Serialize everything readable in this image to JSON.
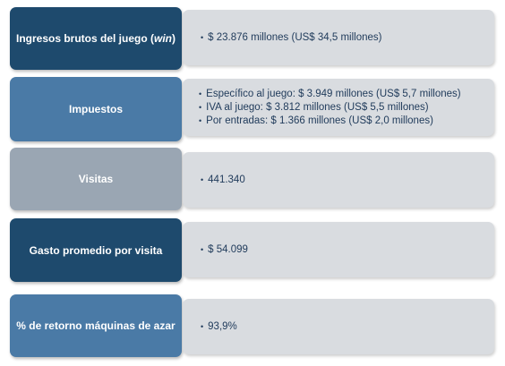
{
  "colors": {
    "navy": "#1e4a6d",
    "steel": "#4a7aa6",
    "gray": "#9aa6b3",
    "panel": "#d9dce0",
    "panel_text": "#1f3a5a"
  },
  "rows": [
    {
      "label_main": "Ingresos brutos del juego (",
      "label_em": "win",
      "label_end": ")",
      "bullets": [
        "$ 23.876 millones (US$ 34,5 millones)"
      ]
    },
    {
      "label": "Impuestos",
      "bullets": [
        "Específico al juego: $ 3.949 millones (US$ 5,7 millones)",
        "IVA al juego: $ 3.812 millones (US$ 5,5 millones)",
        "Por entradas: $ 1.366 millones (US$ 2,0 millones)"
      ]
    },
    {
      "label": "Visitas",
      "bullets": [
        "441.340"
      ]
    },
    {
      "label": "Gasto promedio por visita",
      "bullets": [
        "$ 54.099"
      ]
    },
    {
      "label": "% de retorno máquinas de azar",
      "bullets": [
        "93,9%"
      ]
    }
  ]
}
